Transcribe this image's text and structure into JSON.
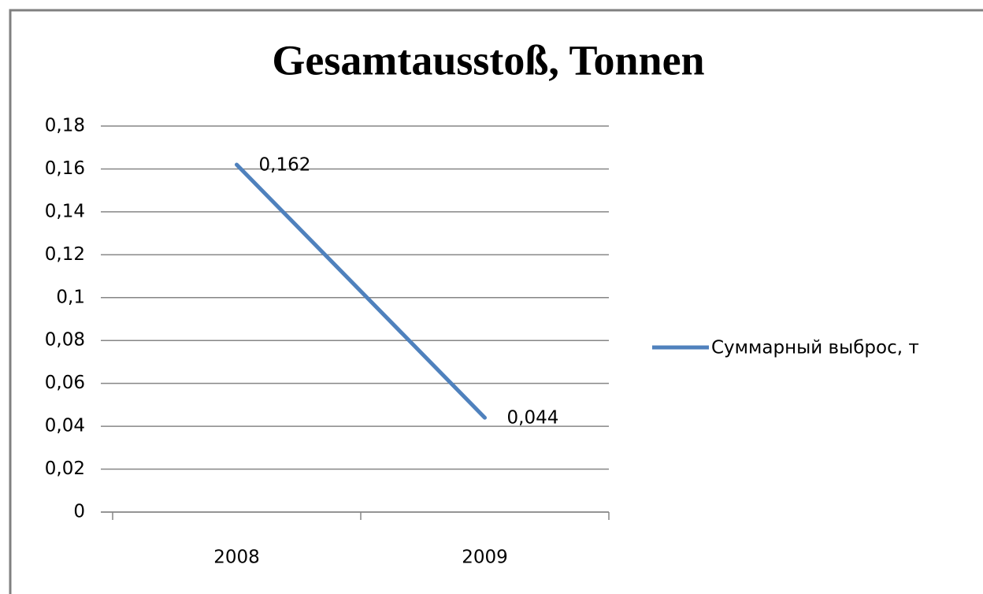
{
  "chart_data": {
    "type": "line",
    "title": "Gesamtausstoß, Tonnen",
    "categories": [
      "2008",
      "2009"
    ],
    "series": [
      {
        "name": "Суммарный выброс, т",
        "color": "#4f81bd",
        "values": [
          0.162,
          0.044
        ],
        "value_labels": [
          "0,162",
          "0,044"
        ]
      }
    ],
    "ylim": [
      0,
      0.18
    ],
    "yticks": [
      0,
      {
        "value": 0.02,
        "label": "0,02"
      },
      {
        "value": 0.04,
        "label": "0,04"
      },
      {
        "value": 0.06,
        "label": "0,06"
      },
      {
        "value": 0.08,
        "label": "0,08"
      },
      {
        "value": 0.1,
        "label": "0,1"
      },
      {
        "value": 0.12,
        "label": "0,12"
      },
      {
        "value": 0.14,
        "label": "0,14"
      },
      {
        "value": 0.16,
        "label": "0,16"
      },
      {
        "value": 0.18,
        "label": "0,18"
      }
    ],
    "grid": true,
    "legend": "right"
  }
}
